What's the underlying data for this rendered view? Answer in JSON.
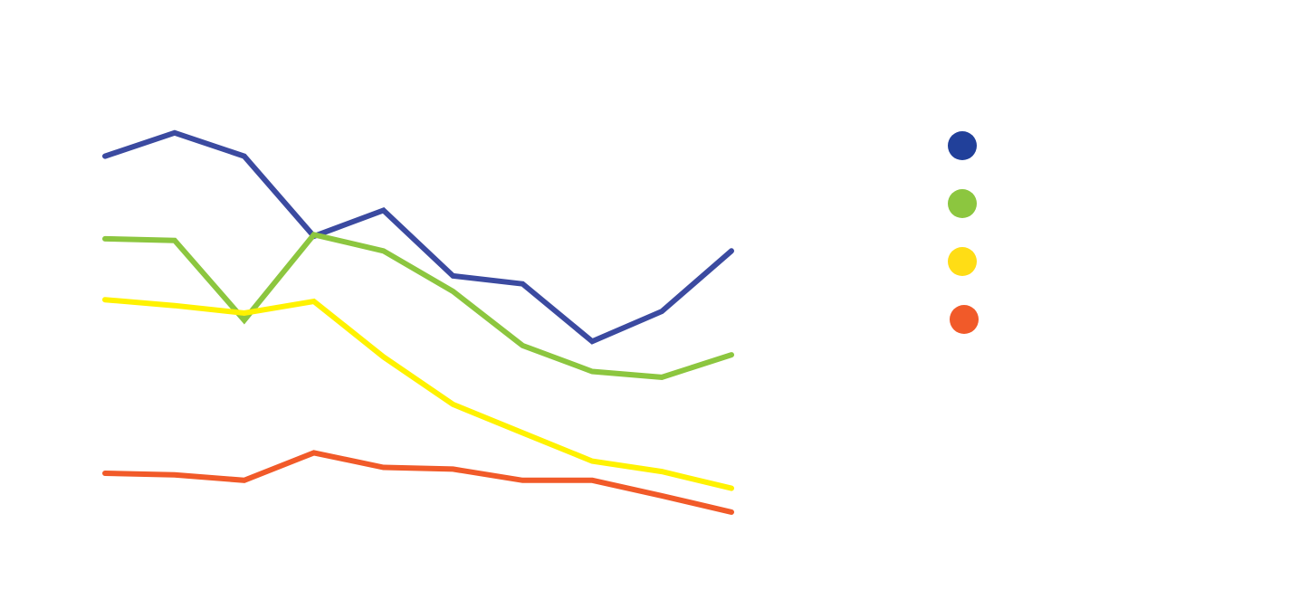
{
  "chart_data": {
    "type": "line",
    "title": "",
    "xlabel": "",
    "ylabel": "",
    "x": [
      1,
      2,
      3,
      4,
      5,
      6,
      7,
      8,
      9,
      10
    ],
    "xlim": [
      1,
      10
    ],
    "ylim": [
      0,
      100
    ],
    "grid": false,
    "legend": "right",
    "series": [
      {
        "color": "#3B4AA0",
        "legend_color": "#21409A",
        "values": [
          86.2,
          91.8,
          86.2,
          67.0,
          73.2,
          57.5,
          55.6,
          41.8,
          49.0,
          63.5
        ]
      },
      {
        "color": "#8CC63F",
        "legend_color": "#8CC63F",
        "values": [
          66.4,
          66.0,
          46.9,
          67.4,
          63.5,
          53.8,
          40.8,
          34.6,
          33.2,
          38.6
        ]
      },
      {
        "color": "#FFF200",
        "legend_color": "#FFDD15",
        "values": [
          51.8,
          50.4,
          48.6,
          51.4,
          38.1,
          26.7,
          19.9,
          13.1,
          10.6,
          6.6
        ]
      },
      {
        "color": "#F15A29",
        "legend_color": "#F15A29",
        "values": [
          10.2,
          9.8,
          8.5,
          15.1,
          11.6,
          11.2,
          8.5,
          8.5,
          4.8,
          0.9
        ]
      }
    ]
  }
}
